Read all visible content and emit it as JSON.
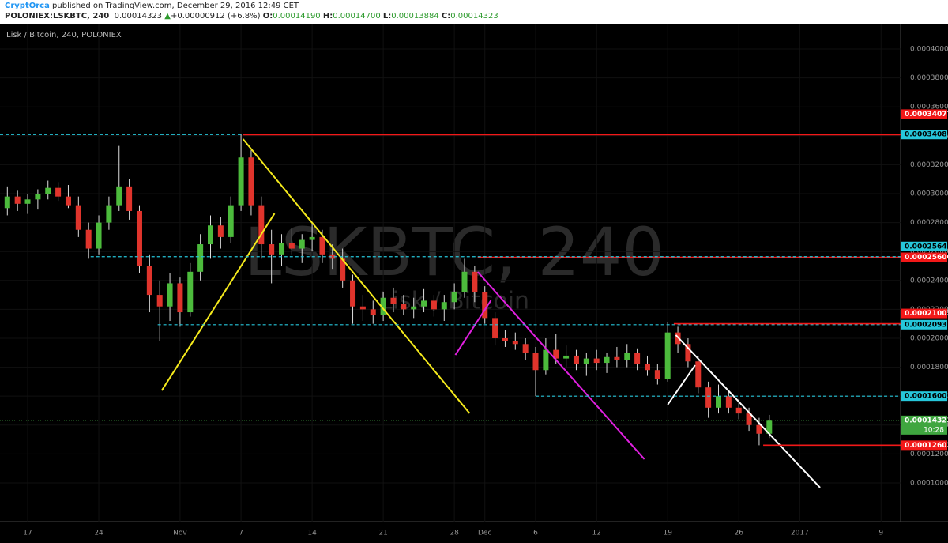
{
  "header": {
    "author": "CryptOrca",
    "published": "published on TradingView.com, December 29, 2016 12:49 CET",
    "symbol": "POLONIEX:LSKBTC, 240",
    "last": "0.00014323",
    "arrow": "▲",
    "change": "+0.00000912 (+6.8%)",
    "o_label": "O:",
    "open": "0.00014190",
    "h_label": "H:",
    "high": "0.00014700",
    "l_label": "L:",
    "low": "0.00013884",
    "c_label": "C:",
    "close": "0.00014323"
  },
  "chart_data": {
    "type": "candlestick",
    "legend": "Lisk / Bitcoin, 240, POLONIEX",
    "watermark": "LSKBTC, 240",
    "watermark_sub": "Lisk / Bitcoin",
    "up_color": "#4cbb3c",
    "down_color": "#e0342c",
    "grid": true,
    "categories": [
      null,
      null,
      "17",
      null,
      null,
      null,
      null,
      null,
      null,
      "24",
      null,
      null,
      null,
      null,
      null,
      null,
      null,
      "Nov",
      null,
      null,
      null,
      null,
      null,
      "7",
      null,
      null,
      null,
      null,
      null,
      null,
      "14",
      null,
      null,
      null,
      null,
      null,
      null,
      "21",
      null,
      null,
      null,
      null,
      null,
      null,
      "28",
      null,
      null,
      "Dec",
      null,
      null,
      null,
      null,
      "6",
      null,
      null,
      null,
      null,
      null,
      "12",
      null,
      null,
      null,
      null,
      null,
      null,
      "19",
      null,
      null,
      null,
      null,
      null,
      null,
      "26",
      null,
      null,
      null,
      null,
      null,
      "2017",
      null,
      null,
      null,
      null,
      null,
      null,
      null,
      "9",
      null
    ],
    "open": [
      0.00029,
      0.000298,
      0.000293,
      0.000296,
      0.0003,
      0.000304,
      0.000298,
      0.000292,
      0.000275,
      0.000262,
      0.00028,
      0.000292,
      0.000305,
      0.000288,
      0.00025,
      0.00023,
      0.000222,
      0.000238,
      0.000218,
      0.000246,
      0.000265,
      0.000278,
      0.00027,
      0.000292,
      0.000325,
      0.000292,
      0.000265,
      0.000258,
      0.000266,
      0.000262,
      0.000268,
      0.00027,
      0.000258,
      0.000255,
      0.00024,
      0.000222,
      0.00022,
      0.000216,
      0.000228,
      0.000224,
      0.00022,
      0.000222,
      0.000226,
      0.00022,
      0.000225,
      0.000232,
      0.000246,
      0.000232,
      0.000214,
      0.0002,
      0.000198,
      0.000196,
      0.00019,
      0.000178,
      0.000192,
      0.000186,
      0.000188,
      0.000182,
      0.000186,
      0.000183,
      0.000187,
      0.000185,
      0.00019,
      0.000182,
      0.000178,
      0.000172,
      0.000204,
      0.000196,
      0.000184,
      0.000166,
      0.000152,
      0.00016,
      0.000152,
      0.000148,
      0.00014,
      0.000134,
      null,
      null,
      null,
      null,
      null,
      null,
      null,
      null,
      null,
      null,
      null,
      null
    ],
    "high": [
      0.000305,
      0.000302,
      0.0003,
      0.000303,
      0.000309,
      0.000308,
      0.000306,
      0.000298,
      0.00028,
      0.000285,
      0.000298,
      0.000333,
      0.00031,
      0.000292,
      0.000258,
      0.00024,
      0.000245,
      0.000242,
      0.000252,
      0.000272,
      0.000285,
      0.000284,
      0.000298,
      0.000341,
      0.00033,
      0.000298,
      0.000275,
      0.000272,
      0.000276,
      0.000272,
      0.00028,
      0.000275,
      0.000265,
      0.000262,
      0.000244,
      0.00023,
      0.000226,
      0.000232,
      0.000235,
      0.00023,
      0.000228,
      0.000234,
      0.00023,
      0.00023,
      0.000238,
      0.000255,
      0.00025,
      0.000236,
      0.000218,
      0.000206,
      0.000204,
      0.0002,
      0.000194,
      0.0002,
      0.000203,
      0.000195,
      0.000192,
      0.00019,
      0.000192,
      0.00019,
      0.000194,
      0.000196,
      0.000193,
      0.000188,
      0.000182,
      0.000211,
      0.000208,
      0.0002,
      0.000188,
      0.00017,
      0.000168,
      0.000164,
      0.000158,
      0.000152,
      0.000145,
      0.000147,
      null,
      null,
      null,
      null,
      null,
      null,
      null,
      null,
      null,
      null,
      null,
      null
    ],
    "low": [
      0.000285,
      0.000288,
      0.000286,
      0.000289,
      0.000296,
      0.000295,
      0.00029,
      0.00027,
      0.000255,
      0.000258,
      0.000275,
      0.000288,
      0.000282,
      0.000245,
      0.000218,
      0.000198,
      0.000212,
      0.000208,
      0.000215,
      0.00024,
      0.000255,
      0.000262,
      0.000266,
      0.000288,
      0.000285,
      0.000255,
      0.000238,
      0.00025,
      0.000258,
      0.000252,
      0.00026,
      0.000252,
      0.000248,
      0.000235,
      0.00021,
      0.000212,
      0.00021,
      0.000212,
      0.000218,
      0.000216,
      0.000214,
      0.000218,
      0.000215,
      0.000212,
      0.00022,
      0.000228,
      0.000225,
      0.00021,
      0.000195,
      0.000194,
      0.000192,
      0.000185,
      0.00016,
      0.000175,
      0.000182,
      0.00018,
      0.000178,
      0.000174,
      0.000178,
      0.000176,
      0.00018,
      0.00018,
      0.000178,
      0.000174,
      0.000168,
      0.00017,
      0.00019,
      0.00018,
      0.000162,
      0.000145,
      0.000148,
      0.000148,
      0.000144,
      0.000136,
      0.000126,
      0.000131,
      null,
      null,
      null,
      null,
      null,
      null,
      null,
      null,
      null,
      null,
      null,
      null
    ],
    "close": [
      0.000298,
      0.000293,
      0.000296,
      0.0003,
      0.000304,
      0.000298,
      0.000292,
      0.000275,
      0.000262,
      0.00028,
      0.000292,
      0.000305,
      0.000288,
      0.00025,
      0.00023,
      0.000222,
      0.000238,
      0.000218,
      0.000246,
      0.000265,
      0.000278,
      0.00027,
      0.000292,
      0.000325,
      0.000292,
      0.000265,
      0.000258,
      0.000266,
      0.000262,
      0.000268,
      0.00027,
      0.000258,
      0.000255,
      0.00024,
      0.000222,
      0.00022,
      0.000216,
      0.000228,
      0.000224,
      0.00022,
      0.000222,
      0.000226,
      0.00022,
      0.000225,
      0.000232,
      0.000246,
      0.000232,
      0.000214,
      0.0002,
      0.000198,
      0.000196,
      0.00019,
      0.000178,
      0.000192,
      0.000186,
      0.000188,
      0.000182,
      0.000186,
      0.000183,
      0.000187,
      0.000185,
      0.00019,
      0.000182,
      0.000178,
      0.000172,
      0.000204,
      0.000196,
      0.000184,
      0.000166,
      0.000152,
      0.00016,
      0.000152,
      0.000148,
      0.00014,
      0.000134,
      0.000143,
      null,
      null,
      null,
      null,
      null,
      null,
      null,
      null,
      null,
      null,
      null,
      null
    ],
    "ylim": [
      7.32e-05,
      0.0004093
    ],
    "yticks": [
      {
        "value": 0.0001,
        "label": "0.00010000"
      },
      {
        "value": 0.00012,
        "label": "0.00012000"
      },
      {
        "value": 0.00014,
        "label": "0.00014000"
      },
      {
        "value": 0.00016,
        "label": "0.00016000"
      },
      {
        "value": 0.00018,
        "label": "0.00018000"
      },
      {
        "value": 0.0002,
        "label": "0.00020000"
      },
      {
        "value": 0.00022,
        "label": "0.00022000"
      },
      {
        "value": 0.00024,
        "label": "0.00024000"
      },
      {
        "value": 0.00026,
        "label": "0.00026000"
      },
      {
        "value": 0.00028,
        "label": "0.00028000"
      },
      {
        "value": 0.0003,
        "label": "0.00030000"
      },
      {
        "value": 0.00032,
        "label": "0.00032000"
      },
      {
        "value": 0.00034,
        "label": "0.00034000"
      },
      {
        "value": 0.00036,
        "label": "0.00036000"
      },
      {
        "value": 0.00038,
        "label": "0.00038000"
      },
      {
        "value": 0.0004,
        "label": "0.00040000"
      }
    ],
    "levels": [
      {
        "value": 0.00034086,
        "color": "#26c6da",
        "style": "dashed"
      },
      {
        "value": 0.00034077,
        "color": "#f21818",
        "style": "solid",
        "start": 23.2
      },
      {
        "value": 0.000256,
        "label": "0.00025600",
        "color": "#f21818",
        "style": "solid",
        "start": 46.3
      },
      {
        "value": 0.0002564,
        "label": "0.00025640",
        "color": "#26c6da",
        "style": "dashed",
        "start": 8.2
      },
      {
        "value": 0.00020939,
        "color": "#26c6da",
        "style": "dashed",
        "start": 14.8
      },
      {
        "value": 0.00021005,
        "color": "#f21818",
        "style": "solid",
        "start": 65.6
      },
      {
        "value": 0.00016,
        "label": "0.00016000",
        "color": "#26c6da",
        "style": "dashed",
        "start": 52
      },
      {
        "value": 0.00012602,
        "color": "#f21818",
        "style": "solid",
        "start": 74.4
      }
    ],
    "current": {
      "value": 0.00014323,
      "time_label": "10:28",
      "color": "#3fa63f"
    },
    "trendlines": [
      {
        "color": "#f5ea1c",
        "points": [
          [
            15.2,
            0.0001639
          ],
          [
            26.3,
            0.0002863
          ]
        ]
      },
      {
        "color": "#f5ea1c",
        "points": [
          [
            23.2,
            0.0003377
          ],
          [
            45.5,
            0.0001481
          ]
        ]
      },
      {
        "color": "#e020e0",
        "points": [
          [
            44.1,
            0.0001885
          ],
          [
            47.6,
            0.0002262
          ]
        ]
      },
      {
        "color": "#e020e0",
        "points": [
          [
            46.3,
            0.0002459
          ],
          [
            62.7,
            0.0001164
          ]
        ]
      },
      {
        "color": "#ffffff",
        "points": [
          [
            65.0,
            0.0001541
          ],
          [
            67.7,
            0.0001814
          ]
        ]
      },
      {
        "color": "#ffffff",
        "points": [
          [
            65.8,
            0.0002022
          ],
          [
            80.0,
            9.67e-05
          ]
        ]
      }
    ]
  }
}
